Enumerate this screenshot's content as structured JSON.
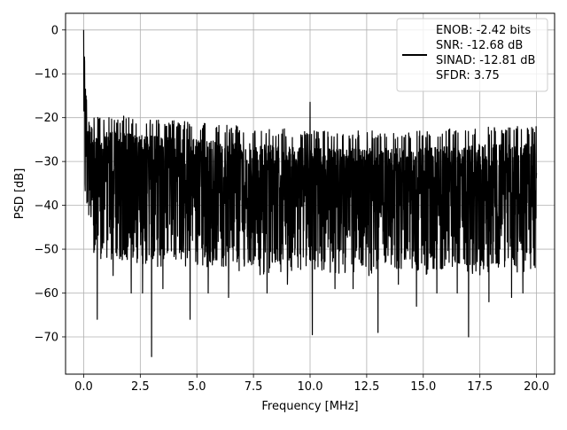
{
  "chart_data": {
    "type": "line",
    "title": "",
    "xlabel": "Frequency [MHz]",
    "ylabel": "PSD [dB]",
    "xlim": [
      -0.8,
      20.8
    ],
    "ylim": [
      -78.5,
      3.8
    ],
    "xticks": [
      0.0,
      2.5,
      5.0,
      7.5,
      10.0,
      12.5,
      15.0,
      17.5,
      20.0
    ],
    "xtick_labels": [
      "0.0",
      "2.5",
      "5.0",
      "7.5",
      "10.0",
      "12.5",
      "15.0",
      "17.5",
      "20.0"
    ],
    "yticks": [
      0,
      -10,
      -20,
      -30,
      -40,
      -50,
      -60,
      -70
    ],
    "ytick_labels": [
      "0",
      "−10",
      "−20",
      "−30",
      "−40",
      "−50",
      "−60",
      "−70"
    ],
    "grid": true,
    "legend_position": "top-right",
    "legend_lines": [
      "ENOB: -2.42 bits",
      "SNR: -12.68 dB",
      "SINAD: -12.81 dB",
      "SFDR: 3.75"
    ],
    "series": [
      {
        "color": "#000000",
        "x_range": [
          0,
          20
        ],
        "envelope": {
          "x": [
            0.0,
            0.1,
            0.5,
            1.0,
            2.5,
            5.0,
            7.5,
            10.0,
            12.5,
            15.0,
            17.5,
            20.0
          ],
          "upper": [
            0,
            -14,
            -20,
            -19,
            -20,
            -21,
            -22,
            -23,
            -23,
            -23,
            -22,
            -22
          ],
          "lower": [
            -34,
            -42,
            -52,
            -53,
            -54,
            -54,
            -56,
            -55,
            -56,
            -56,
            -56,
            -55
          ]
        },
        "dips": [
          {
            "x": 0.6,
            "y": -66
          },
          {
            "x": 1.3,
            "y": -56
          },
          {
            "x": 2.1,
            "y": -60
          },
          {
            "x": 2.6,
            "y": -60
          },
          {
            "x": 3.0,
            "y": -74.5
          },
          {
            "x": 3.5,
            "y": -59
          },
          {
            "x": 4.7,
            "y": -66
          },
          {
            "x": 5.5,
            "y": -60
          },
          {
            "x": 6.4,
            "y": -61
          },
          {
            "x": 8.1,
            "y": -60
          },
          {
            "x": 9.0,
            "y": -58
          },
          {
            "x": 10.1,
            "y": -69.5
          },
          {
            "x": 11.1,
            "y": -59
          },
          {
            "x": 11.9,
            "y": -59
          },
          {
            "x": 13.0,
            "y": -69
          },
          {
            "x": 13.9,
            "y": -58
          },
          {
            "x": 14.7,
            "y": -63
          },
          {
            "x": 15.6,
            "y": -60
          },
          {
            "x": 16.5,
            "y": -60
          },
          {
            "x": 17.0,
            "y": -70
          },
          {
            "x": 17.9,
            "y": -62
          },
          {
            "x": 18.9,
            "y": -61
          },
          {
            "x": 19.4,
            "y": -60
          }
        ],
        "spikes": [
          {
            "x": 0.0,
            "y": 0
          },
          {
            "x": 0.08,
            "y": -13.5
          },
          {
            "x": 10.0,
            "y": -16.5
          }
        ]
      }
    ]
  }
}
